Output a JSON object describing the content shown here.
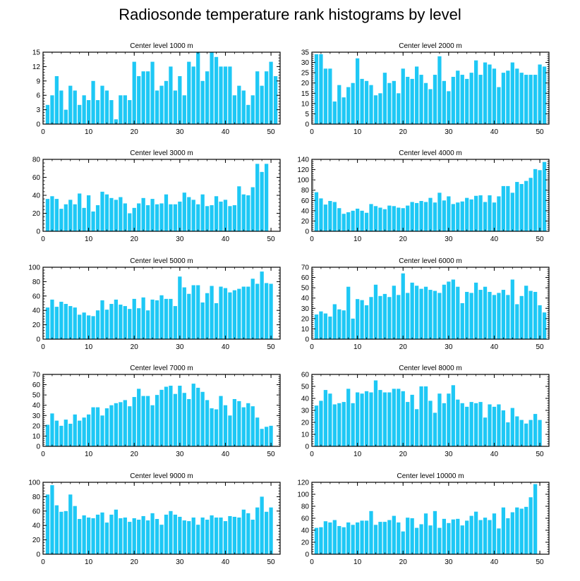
{
  "figure": {
    "title": "Radiosonde temperature rank histograms by level",
    "bar_color": "#1ec8f5",
    "background": "#ffffff"
  },
  "chart_data": [
    {
      "type": "bar",
      "title": "Center level 1000 m",
      "xlabel": "",
      "ylabel": "",
      "xlim": [
        0,
        52
      ],
      "ylim": [
        0,
        15
      ],
      "xticks": [
        0,
        10,
        20,
        30,
        40,
        50
      ],
      "yticks": [
        0,
        3,
        6,
        9,
        12,
        15
      ],
      "categories": [
        1,
        2,
        3,
        4,
        5,
        6,
        7,
        8,
        9,
        10,
        11,
        12,
        13,
        14,
        15,
        16,
        17,
        18,
        19,
        20,
        21,
        22,
        23,
        24,
        25,
        26,
        27,
        28,
        29,
        30,
        31,
        32,
        33,
        34,
        35,
        36,
        37,
        38,
        39,
        40,
        41,
        42,
        43,
        44,
        45,
        46,
        47,
        48,
        49,
        50,
        51
      ],
      "values": [
        4,
        6,
        10,
        7,
        3,
        8,
        7,
        4,
        6,
        5,
        9,
        5,
        8,
        7,
        5,
        1,
        6,
        6,
        5,
        13,
        10,
        11,
        11,
        13,
        7,
        8,
        9,
        12,
        7,
        10,
        6,
        13,
        12,
        15,
        9,
        11,
        15,
        14,
        12,
        12,
        12,
        6,
        8,
        7,
        4,
        6,
        11,
        8,
        11,
        13,
        10
      ]
    },
    {
      "type": "bar",
      "title": "Center level 2000 m",
      "xlabel": "",
      "ylabel": "",
      "xlim": [
        0,
        52
      ],
      "ylim": [
        0,
        35
      ],
      "xticks": [
        0,
        10,
        20,
        30,
        40,
        50
      ],
      "yticks": [
        0,
        5,
        10,
        15,
        20,
        25,
        30,
        35
      ],
      "categories": [
        1,
        2,
        3,
        4,
        5,
        6,
        7,
        8,
        9,
        10,
        11,
        12,
        13,
        14,
        15,
        16,
        17,
        18,
        19,
        20,
        21,
        22,
        23,
        24,
        25,
        26,
        27,
        28,
        29,
        30,
        31,
        32,
        33,
        34,
        35,
        36,
        37,
        38,
        39,
        40,
        41,
        42,
        43,
        44,
        45,
        46,
        47,
        48,
        49,
        50,
        51
      ],
      "values": [
        34,
        34,
        27,
        27,
        11,
        19,
        13,
        18,
        20,
        32,
        22,
        21,
        19,
        14,
        15,
        25,
        20,
        21,
        15,
        27,
        23,
        22,
        28,
        24,
        20,
        17,
        24,
        33,
        21,
        16,
        23,
        26,
        24,
        22,
        25,
        31,
        24,
        30,
        29,
        27,
        18,
        25,
        26,
        30,
        27,
        25,
        24,
        24,
        24,
        29,
        28
      ]
    },
    {
      "type": "bar",
      "title": "Center level 3000 m",
      "xlabel": "",
      "ylabel": "",
      "xlim": [
        0,
        52
      ],
      "ylim": [
        0,
        80
      ],
      "xticks": [
        0,
        10,
        20,
        30,
        40,
        50
      ],
      "yticks": [
        0,
        20,
        40,
        60,
        80
      ],
      "categories": [
        1,
        2,
        3,
        4,
        5,
        6,
        7,
        8,
        9,
        10,
        11,
        12,
        13,
        14,
        15,
        16,
        17,
        18,
        19,
        20,
        21,
        22,
        23,
        24,
        25,
        26,
        27,
        28,
        29,
        30,
        31,
        32,
        33,
        34,
        35,
        36,
        37,
        38,
        39,
        40,
        41,
        42,
        43,
        44,
        45,
        46,
        47,
        48,
        49,
        50,
        51
      ],
      "values": [
        36,
        39,
        36,
        25,
        30,
        35,
        30,
        42,
        26,
        40,
        22,
        29,
        44,
        41,
        37,
        35,
        38,
        31,
        20,
        26,
        31,
        37,
        29,
        36,
        30,
        31,
        41,
        30,
        30,
        33,
        43,
        38,
        35,
        30,
        41,
        28,
        29,
        39,
        33,
        35,
        28,
        29,
        50,
        41,
        40,
        49,
        75,
        66,
        75,
        0,
        0
      ]
    },
    {
      "type": "bar",
      "title": "Center level 4000 m",
      "xlabel": "",
      "ylabel": "",
      "xlim": [
        0,
        52
      ],
      "ylim": [
        0,
        140
      ],
      "xticks": [
        0,
        10,
        20,
        30,
        40,
        50
      ],
      "yticks": [
        0,
        20,
        40,
        60,
        80,
        100,
        120,
        140
      ],
      "categories": [
        1,
        2,
        3,
        4,
        5,
        6,
        7,
        8,
        9,
        10,
        11,
        12,
        13,
        14,
        15,
        16,
        17,
        18,
        19,
        20,
        21,
        22,
        23,
        24,
        25,
        26,
        27,
        28,
        29,
        30,
        31,
        32,
        33,
        34,
        35,
        36,
        37,
        38,
        39,
        40,
        41,
        42,
        43,
        44,
        45,
        46,
        47,
        48,
        49,
        50,
        51
      ],
      "values": [
        76,
        64,
        52,
        59,
        57,
        45,
        34,
        37,
        40,
        44,
        40,
        36,
        53,
        49,
        46,
        43,
        50,
        49,
        46,
        45,
        50,
        57,
        55,
        59,
        57,
        65,
        56,
        75,
        60,
        68,
        53,
        56,
        58,
        65,
        62,
        69,
        70,
        57,
        70,
        56,
        68,
        88,
        88,
        75,
        96,
        92,
        98,
        104,
        121,
        119,
        135
      ]
    },
    {
      "type": "bar",
      "title": "Center level 5000 m",
      "xlabel": "",
      "ylabel": "",
      "xlim": [
        0,
        52
      ],
      "ylim": [
        0,
        100
      ],
      "xticks": [
        0,
        10,
        20,
        30,
        40,
        50
      ],
      "yticks": [
        0,
        20,
        40,
        60,
        80,
        100
      ],
      "categories": [
        1,
        2,
        3,
        4,
        5,
        6,
        7,
        8,
        9,
        10,
        11,
        12,
        13,
        14,
        15,
        16,
        17,
        18,
        19,
        20,
        21,
        22,
        23,
        24,
        25,
        26,
        27,
        28,
        29,
        30,
        31,
        32,
        33,
        34,
        35,
        36,
        37,
        38,
        39,
        40,
        41,
        42,
        43,
        44,
        45,
        46,
        47,
        48,
        49,
        50,
        51
      ],
      "values": [
        44,
        55,
        45,
        52,
        49,
        46,
        44,
        34,
        37,
        33,
        32,
        40,
        54,
        41,
        49,
        55,
        48,
        46,
        42,
        56,
        43,
        58,
        40,
        55,
        54,
        61,
        56,
        56,
        46,
        87,
        72,
        63,
        75,
        75,
        51,
        64,
        74,
        50,
        73,
        71,
        65,
        68,
        70,
        73,
        73,
        84,
        77,
        94,
        78,
        77,
        0
      ]
    },
    {
      "type": "bar",
      "title": "Center level 6000 m",
      "xlabel": "",
      "ylabel": "",
      "xlim": [
        0,
        52
      ],
      "ylim": [
        0,
        70
      ],
      "xticks": [
        0,
        10,
        20,
        30,
        40,
        50
      ],
      "yticks": [
        0,
        10,
        20,
        30,
        40,
        50,
        60,
        70
      ],
      "categories": [
        1,
        2,
        3,
        4,
        5,
        6,
        7,
        8,
        9,
        10,
        11,
        12,
        13,
        14,
        15,
        16,
        17,
        18,
        19,
        20,
        21,
        22,
        23,
        24,
        25,
        26,
        27,
        28,
        29,
        30,
        31,
        32,
        33,
        34,
        35,
        36,
        37,
        38,
        39,
        40,
        41,
        42,
        43,
        44,
        45,
        46,
        47,
        48,
        49,
        50,
        51
      ],
      "values": [
        24,
        27,
        25,
        22,
        34,
        29,
        28,
        51,
        20,
        39,
        38,
        33,
        41,
        53,
        42,
        44,
        41,
        52,
        43,
        64,
        45,
        55,
        52,
        49,
        51,
        48,
        47,
        45,
        53,
        56,
        58,
        51,
        35,
        46,
        45,
        55,
        48,
        51,
        46,
        43,
        45,
        48,
        43,
        58,
        34,
        42,
        52,
        47,
        46,
        33,
        26
      ]
    },
    {
      "type": "bar",
      "title": "Center level 7000 m",
      "xlabel": "",
      "ylabel": "",
      "xlim": [
        0,
        52
      ],
      "ylim": [
        0,
        70
      ],
      "xticks": [
        0,
        10,
        20,
        30,
        40,
        50
      ],
      "yticks": [
        0,
        10,
        20,
        30,
        40,
        50,
        60,
        70
      ],
      "categories": [
        1,
        2,
        3,
        4,
        5,
        6,
        7,
        8,
        9,
        10,
        11,
        12,
        13,
        14,
        15,
        16,
        17,
        18,
        19,
        20,
        21,
        22,
        23,
        24,
        25,
        26,
        27,
        28,
        29,
        30,
        31,
        32,
        33,
        34,
        35,
        36,
        37,
        38,
        39,
        40,
        41,
        42,
        43,
        44,
        45,
        46,
        47,
        48,
        49,
        50,
        51
      ],
      "values": [
        21,
        32,
        25,
        20,
        26,
        22,
        31,
        25,
        28,
        31,
        38,
        38,
        30,
        37,
        40,
        42,
        43,
        45,
        39,
        48,
        56,
        49,
        49,
        40,
        50,
        55,
        58,
        59,
        51,
        59,
        52,
        46,
        61,
        57,
        53,
        45,
        37,
        36,
        49,
        40,
        30,
        46,
        44,
        38,
        42,
        39,
        28,
        17,
        19,
        20,
        0
      ]
    },
    {
      "type": "bar",
      "title": "Center level 8000 m",
      "xlabel": "",
      "ylabel": "",
      "xlim": [
        0,
        52
      ],
      "ylim": [
        0,
        60
      ],
      "xticks": [
        0,
        10,
        20,
        30,
        40,
        50
      ],
      "yticks": [
        0,
        10,
        20,
        30,
        40,
        50,
        60
      ],
      "categories": [
        1,
        2,
        3,
        4,
        5,
        6,
        7,
        8,
        9,
        10,
        11,
        12,
        13,
        14,
        15,
        16,
        17,
        18,
        19,
        20,
        21,
        22,
        23,
        24,
        25,
        26,
        27,
        28,
        29,
        30,
        31,
        32,
        33,
        34,
        35,
        36,
        37,
        38,
        39,
        40,
        41,
        42,
        43,
        44,
        45,
        46,
        47,
        48,
        49,
        50,
        51
      ],
      "values": [
        34,
        38,
        47,
        44,
        35,
        36,
        37,
        48,
        36,
        45,
        44,
        46,
        45,
        55,
        47,
        45,
        45,
        48,
        48,
        46,
        37,
        43,
        31,
        50,
        50,
        38,
        28,
        44,
        36,
        44,
        51,
        39,
        36,
        33,
        37,
        36,
        37,
        24,
        35,
        33,
        35,
        30,
        20,
        32,
        25,
        22,
        19,
        22,
        27,
        22,
        0
      ]
    },
    {
      "type": "bar",
      "title": "Center level 9000 m",
      "xlabel": "",
      "ylabel": "",
      "xlim": [
        0,
        52
      ],
      "ylim": [
        0,
        100
      ],
      "xticks": [
        0,
        10,
        20,
        30,
        40,
        50
      ],
      "yticks": [
        0,
        20,
        40,
        60,
        80,
        100
      ],
      "categories": [
        1,
        2,
        3,
        4,
        5,
        6,
        7,
        8,
        9,
        10,
        11,
        12,
        13,
        14,
        15,
        16,
        17,
        18,
        19,
        20,
        21,
        22,
        23,
        24,
        25,
        26,
        27,
        28,
        29,
        30,
        31,
        32,
        33,
        34,
        35,
        36,
        37,
        38,
        39,
        40,
        41,
        42,
        43,
        44,
        45,
        46,
        47,
        48,
        49,
        50,
        51
      ],
      "values": [
        83,
        96,
        68,
        59,
        60,
        83,
        67,
        49,
        54,
        51,
        50,
        55,
        58,
        44,
        55,
        62,
        50,
        51,
        45,
        50,
        48,
        53,
        47,
        57,
        49,
        41,
        55,
        60,
        55,
        52,
        47,
        46,
        51,
        41,
        51,
        48,
        54,
        51,
        51,
        46,
        53,
        52,
        51,
        62,
        57,
        48,
        65,
        80,
        59,
        65,
        0
      ]
    },
    {
      "type": "bar",
      "title": "Center level 10000 m",
      "xlabel": "",
      "ylabel": "",
      "xlim": [
        0,
        52
      ],
      "ylim": [
        0,
        120
      ],
      "xticks": [
        0,
        10,
        20,
        30,
        40,
        50
      ],
      "yticks": [
        0,
        20,
        40,
        60,
        80,
        100,
        120
      ],
      "categories": [
        1,
        2,
        3,
        4,
        5,
        6,
        7,
        8,
        9,
        10,
        11,
        12,
        13,
        14,
        15,
        16,
        17,
        18,
        19,
        20,
        21,
        22,
        23,
        24,
        25,
        26,
        27,
        28,
        29,
        30,
        31,
        32,
        33,
        34,
        35,
        36,
        37,
        38,
        39,
        40,
        41,
        42,
        43,
        44,
        45,
        46,
        47,
        48,
        49,
        50,
        51
      ],
      "values": [
        44,
        45,
        55,
        53,
        57,
        47,
        45,
        53,
        49,
        53,
        56,
        56,
        72,
        49,
        54,
        54,
        57,
        64,
        53,
        38,
        61,
        60,
        44,
        50,
        68,
        48,
        72,
        44,
        59,
        52,
        58,
        59,
        48,
        56,
        64,
        71,
        57,
        61,
        57,
        68,
        43,
        78,
        60,
        70,
        78,
        76,
        79,
        95,
        117,
        0,
        0
      ]
    }
  ]
}
